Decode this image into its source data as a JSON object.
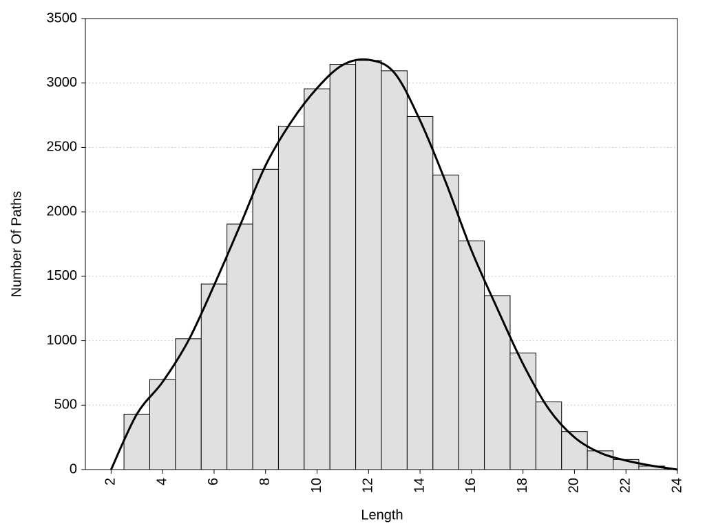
{
  "chart_data": {
    "type": "histogram",
    "xlabel": "Length",
    "ylabel": "Number Of Paths",
    "bins": [
      2.5,
      3.5,
      4.5,
      5.5,
      6.5,
      7.5,
      8.5,
      9.5,
      10.5,
      11.5,
      12.5,
      13.5,
      14.5,
      15.5,
      16.5,
      17.5,
      18.5,
      19.5,
      20.5,
      21.5,
      22.5,
      23.5
    ],
    "values": [
      430,
      700,
      1015,
      1440,
      1905,
      2330,
      2665,
      2955,
      3145,
      3175,
      3095,
      2740,
      2285,
      1775,
      1350,
      905,
      525,
      295,
      145,
      78,
      27
    ],
    "color": "#e0e0e0",
    "curve": {
      "color": "#000000",
      "x": [
        2,
        3,
        4,
        5,
        6,
        7,
        8,
        9,
        10,
        11,
        12,
        13,
        14,
        15,
        16,
        17,
        18,
        19,
        20,
        21,
        22,
        23,
        24
      ],
      "values": [
        0,
        430,
        680,
        1000,
        1430,
        1890,
        2360,
        2700,
        2960,
        3140,
        3180,
        3080,
        2710,
        2230,
        1700,
        1250,
        820,
        470,
        250,
        130,
        70,
        30,
        0
      ]
    },
    "xlim": [
      1,
      24
    ],
    "ylim": [
      0,
      3500
    ],
    "xticks": [
      2,
      4,
      6,
      8,
      10,
      12,
      14,
      16,
      18,
      20,
      22,
      24
    ],
    "yticks": [
      0,
      500,
      1000,
      1500,
      2000,
      2500,
      3000,
      3500
    ],
    "grid": true
  }
}
